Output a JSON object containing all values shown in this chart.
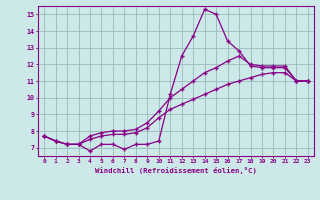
{
  "xlabel": "Windchill (Refroidissement éolien,°C)",
  "background_color": "#cce8e8",
  "line_color": "#880088",
  "grid_color": "#99bbbb",
  "xlim_min": -0.5,
  "xlim_max": 23.5,
  "ylim_min": 6.5,
  "ylim_max": 15.5,
  "xticks": [
    0,
    1,
    2,
    3,
    4,
    5,
    6,
    7,
    8,
    9,
    10,
    11,
    12,
    13,
    14,
    15,
    16,
    17,
    18,
    19,
    20,
    21,
    22,
    23
  ],
  "yticks": [
    7,
    8,
    9,
    10,
    11,
    12,
    13,
    14,
    15
  ],
  "series1": [
    7.7,
    7.4,
    7.2,
    7.2,
    6.8,
    7.2,
    7.2,
    6.9,
    7.2,
    7.2,
    7.4,
    10.2,
    12.5,
    13.7,
    15.3,
    15.0,
    13.4,
    12.8,
    11.9,
    11.8,
    11.8,
    11.8,
    11.0,
    11.0
  ],
  "series2": [
    7.7,
    7.4,
    7.2,
    7.2,
    7.7,
    7.9,
    8.0,
    8.0,
    8.1,
    8.5,
    9.2,
    10.0,
    10.5,
    11.0,
    11.5,
    11.8,
    12.2,
    12.5,
    12.0,
    11.9,
    11.9,
    11.9,
    11.0,
    11.0
  ],
  "series3": [
    7.7,
    7.4,
    7.2,
    7.2,
    7.5,
    7.7,
    7.8,
    7.8,
    7.9,
    8.2,
    8.8,
    9.3,
    9.6,
    9.9,
    10.2,
    10.5,
    10.8,
    11.0,
    11.2,
    11.4,
    11.5,
    11.5,
    11.0,
    11.0
  ],
  "marker_size": 3.5,
  "line_width": 0.9
}
